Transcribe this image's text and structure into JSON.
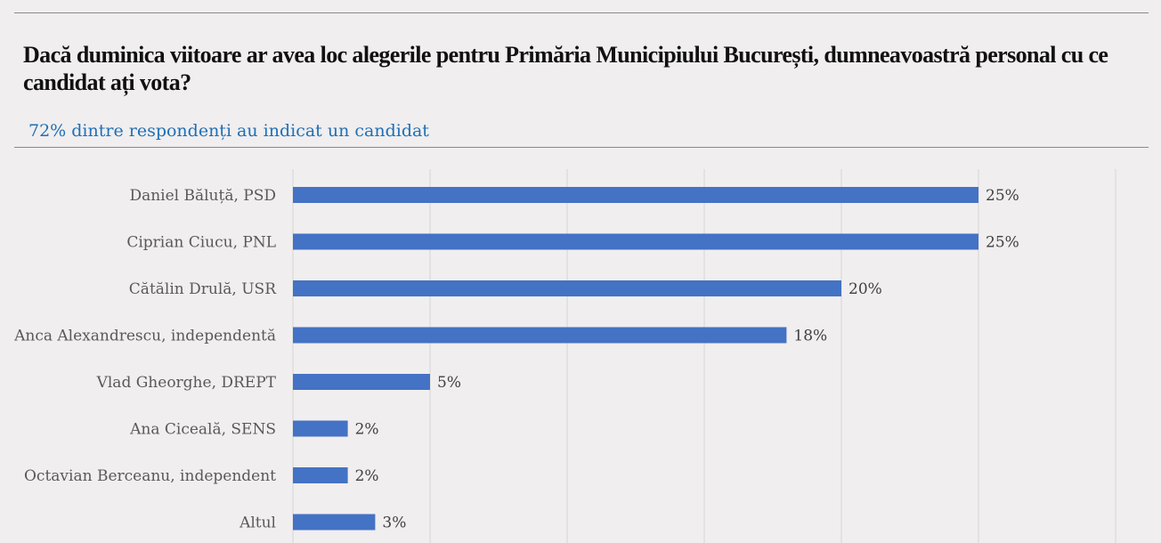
{
  "title": "Dacă duminica viitoare ar avea loc alegerile pentru Primăria Municipiului București, dumneavoastră personal cu ce candidat ați vota?",
  "subtitle": "72% dintre respondenți au indicat un candidat",
  "chart_data": {
    "type": "bar",
    "orientation": "horizontal",
    "categories": [
      "Daniel Băluță, PSD",
      "Ciprian Ciucu, PNL",
      "Cătălin Drulă, USR",
      "Anca Alexandrescu, independentă",
      "Vlad Gheorghe, DREPT",
      "Ana Ciceală, SENS",
      "Octavian Berceanu, independent",
      "Altul"
    ],
    "values": [
      25,
      25,
      20,
      18,
      5,
      2,
      2,
      3
    ],
    "value_labels": [
      "25%",
      "25%",
      "20%",
      "18%",
      "5%",
      "2%",
      "2%",
      "3%"
    ],
    "xlim": [
      0,
      30
    ],
    "grid": true,
    "bar_color": "#4472c4"
  }
}
